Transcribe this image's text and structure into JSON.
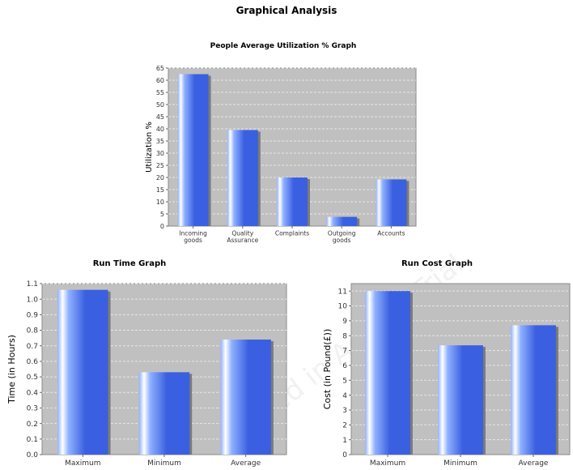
{
  "page_title": "Graphical Analysis",
  "chart_data": [
    {
      "type": "bar",
      "title": "People Average Utilization % Graph",
      "xlabel": "",
      "ylabel": "Utilization %",
      "categories": [
        "Incoming goods",
        "Quality Assurance",
        "Complaints",
        "Outgoing goods",
        "Accounts"
      ],
      "values": [
        62.5,
        39.5,
        20,
        3.8,
        19.2
      ],
      "ylim": [
        0,
        65
      ],
      "yticks": [
        0,
        5,
        10,
        15,
        20,
        25,
        30,
        35,
        40,
        45,
        50,
        55,
        60,
        65
      ],
      "grid": true
    },
    {
      "type": "bar",
      "title": "Run Time Graph",
      "xlabel": "",
      "ylabel": "Time (in Hours)",
      "categories": [
        "Maximum",
        "Minimum",
        "Average"
      ],
      "values": [
        1.06,
        0.53,
        0.74
      ],
      "ylim": [
        0,
        1.1
      ],
      "yticks": [
        "0.0",
        "0.1",
        "0.2",
        "0.3",
        "0.4",
        "0.5",
        "0.6",
        "0.7",
        "0.8",
        "0.9",
        "1.0",
        "1.1"
      ],
      "grid": true
    },
    {
      "type": "bar",
      "title": "Run Cost Graph",
      "xlabel": "",
      "ylabel": "Cost (in Pound(£))",
      "categories": [
        "Maximum",
        "Minimum",
        "Average"
      ],
      "values": [
        11,
        7.35,
        8.7
      ],
      "ylim": [
        0,
        11.5
      ],
      "yticks": [
        0,
        1,
        2,
        3,
        4,
        5,
        6,
        7,
        8,
        9,
        10,
        11
      ],
      "grid": true
    }
  ],
  "colors": {
    "plot_background": "#c0c0c0",
    "grid": "#e8e8e8",
    "bar_dark": "#3a5fe0",
    "bar_light": "#8fb0ff",
    "bar_highlight": "#ffffff"
  },
  "watermark": "Created in Access Trial"
}
